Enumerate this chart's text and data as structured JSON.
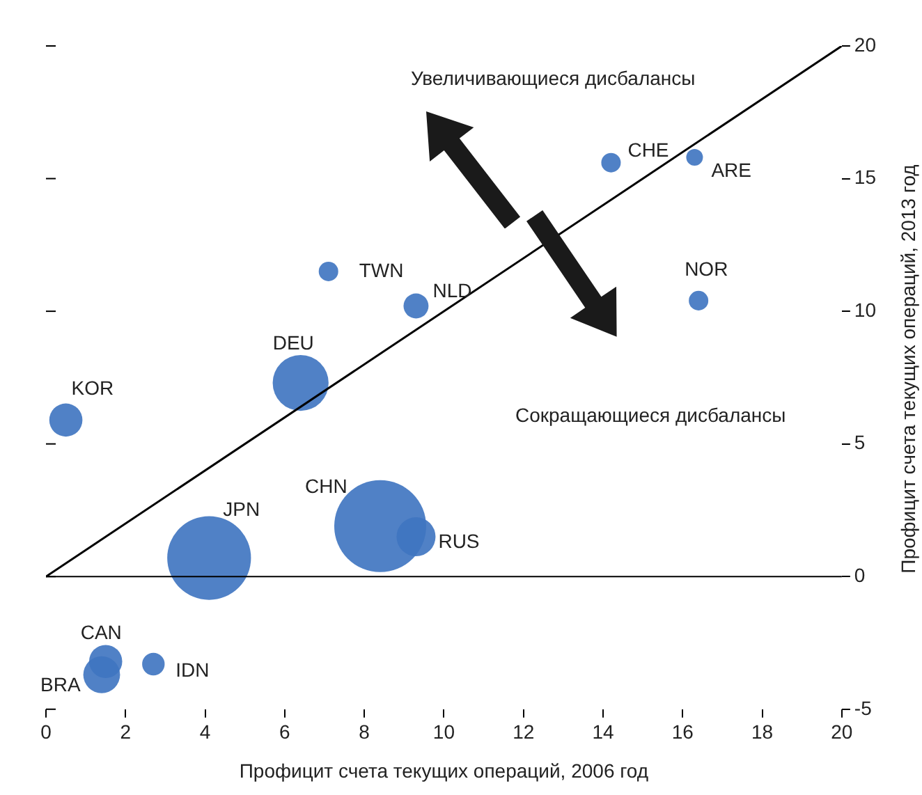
{
  "chart_data": {
    "type": "bubble",
    "xlabel": "Профицит счета текущих операций, 2006 год",
    "ylabel": "Профицит счета текущих операций, 2013 год",
    "xlim": [
      0,
      20
    ],
    "xticks": [
      0,
      2,
      4,
      6,
      8,
      10,
      12,
      14,
      16,
      18,
      20
    ],
    "ylim": [
      -5,
      20
    ],
    "yticks": [
      -5,
      0,
      5,
      10,
      15,
      20
    ],
    "grid": false,
    "legend": false,
    "series": [
      {
        "color": "#3f75c0",
        "x": [
          0.5,
          6.4,
          7.1,
          9.3,
          14.2,
          16.3,
          16.4,
          4.1,
          8.4,
          9.3,
          1.5,
          1.4,
          2.7
        ],
        "values": [
          5.9,
          7.3,
          11.5,
          10.2,
          15.6,
          15.8,
          10.4,
          0.7,
          1.9,
          1.5,
          -3.2,
          -3.7,
          -3.3
        ],
        "sizes": [
          0.13,
          0.37,
          0.045,
          0.074,
          0.045,
          0.033,
          0.045,
          0.83,
          1,
          0.18,
          0.13,
          0.16,
          0.06
        ]
      },
      {
        "type": "line",
        "color": "#000000",
        "x": [
          0,
          20
        ],
        "values": [
          0,
          20
        ],
        "marker": "none"
      }
    ],
    "ref_lines": [
      {
        "axis": "y",
        "value": 0,
        "color": "#000000"
      }
    ],
    "annotations": [
      {
        "text": "KOR",
        "x": 0.5,
        "y": 5.9
      },
      {
        "text": "DEU",
        "x": 6.4,
        "y": 7.3
      },
      {
        "text": "TWN",
        "x": 7.1,
        "y": 11.5
      },
      {
        "text": "NLD",
        "x": 9.3,
        "y": 10.2
      },
      {
        "text": "CHE",
        "x": 14.2,
        "y": 15.6
      },
      {
        "text": "ARE",
        "x": 16.3,
        "y": 15.8
      },
      {
        "text": "NOR",
        "x": 16.4,
        "y": 10.4
      },
      {
        "text": "JPN",
        "x": 4.1,
        "y": 0.7
      },
      {
        "text": "CHN",
        "x": 8.4,
        "y": 1.9
      },
      {
        "text": "RUS",
        "x": 9.3,
        "y": 1.5
      },
      {
        "text": "CAN",
        "x": 1.5,
        "y": -3.2
      },
      {
        "text": "BRA",
        "x": 1.4,
        "y": -3.7
      },
      {
        "text": "IDN",
        "x": 2.7,
        "y": -3.3
      },
      "Увеличивающиеся дисбалансы",
      "Сокращающиеся дисбалансы"
    ]
  }
}
